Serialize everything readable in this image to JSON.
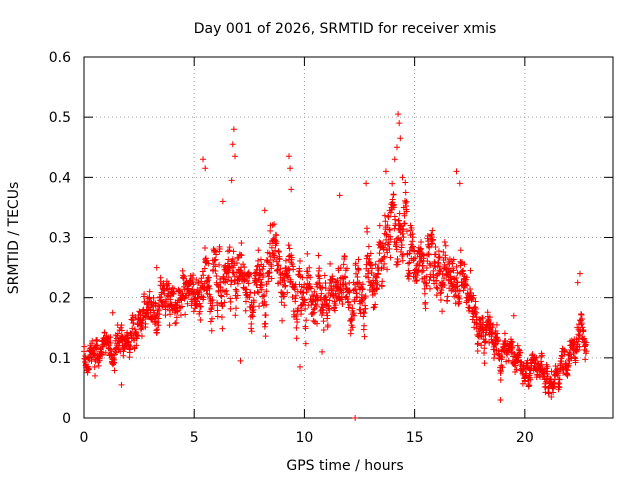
{
  "chart_data": {
    "type": "scatter",
    "title": "Day 001 of 2026, SRMTID for receiver xmis",
    "xlabel": "GPS time / hours",
    "ylabel": "SRMTID / TECUs",
    "xlim": [
      0,
      24
    ],
    "ylim": [
      0,
      0.6
    ],
    "xticks": [
      0,
      5,
      10,
      15,
      20
    ],
    "xtick_labels": [
      "0",
      "5",
      "10",
      "15",
      "20"
    ],
    "yticks": [
      0,
      0.1,
      0.2,
      0.3,
      0.4,
      0.5,
      0.6
    ],
    "ytick_labels": [
      "0",
      "0.1",
      "0.2",
      "0.3",
      "0.4",
      "0.5",
      "0.6"
    ],
    "grid": true,
    "marker": "+",
    "series": [
      {
        "name": "SRMTID",
        "color": "#ff0000",
        "envelope": {
          "x": [
            0,
            0.5,
            1,
            1.5,
            2,
            2.5,
            3,
            3.5,
            4,
            4.5,
            5,
            5.5,
            6,
            6.5,
            7,
            7.5,
            8,
            8.5,
            9,
            9.5,
            10,
            10.5,
            11,
            11.5,
            12,
            12.5,
            13,
            13.5,
            14,
            14.5,
            15,
            15.5,
            16,
            16.5,
            17,
            17.5,
            18,
            18.5,
            19,
            19.5,
            20,
            20.5,
            21,
            21.5,
            22,
            22.5,
            22.8
          ],
          "y": [
            0.11,
            0.11,
            0.115,
            0.13,
            0.14,
            0.16,
            0.175,
            0.18,
            0.19,
            0.2,
            0.22,
            0.26,
            0.25,
            0.24,
            0.23,
            0.2,
            0.22,
            0.25,
            0.26,
            0.24,
            0.21,
            0.21,
            0.22,
            0.2,
            0.19,
            0.2,
            0.22,
            0.27,
            0.33,
            0.32,
            0.28,
            0.26,
            0.25,
            0.27,
            0.24,
            0.19,
            0.16,
            0.14,
            0.11,
            0.1,
            0.075,
            0.07,
            0.065,
            0.07,
            0.1,
            0.14,
            0.1
          ],
          "spread": [
            0.02,
            0.03,
            0.03,
            0.03,
            0.03,
            0.035,
            0.04,
            0.04,
            0.045,
            0.05,
            0.05,
            0.07,
            0.065,
            0.07,
            0.065,
            0.06,
            0.06,
            0.06,
            0.065,
            0.06,
            0.065,
            0.06,
            0.06,
            0.055,
            0.055,
            0.06,
            0.065,
            0.07,
            0.07,
            0.065,
            0.06,
            0.065,
            0.065,
            0.065,
            0.06,
            0.05,
            0.045,
            0.04,
            0.035,
            0.035,
            0.03,
            0.03,
            0.03,
            0.03,
            0.035,
            0.04,
            0.03
          ]
        },
        "peaks": [
          {
            "x": 5.4,
            "y": 0.43
          },
          {
            "x": 5.5,
            "y": 0.415
          },
          {
            "x": 6.3,
            "y": 0.36
          },
          {
            "x": 6.8,
            "y": 0.48
          },
          {
            "x": 6.75,
            "y": 0.455
          },
          {
            "x": 6.85,
            "y": 0.435
          },
          {
            "x": 6.7,
            "y": 0.395
          },
          {
            "x": 8.2,
            "y": 0.345
          },
          {
            "x": 9.3,
            "y": 0.435
          },
          {
            "x": 9.35,
            "y": 0.415
          },
          {
            "x": 9.4,
            "y": 0.38
          },
          {
            "x": 11.6,
            "y": 0.37
          },
          {
            "x": 12.8,
            "y": 0.39
          },
          {
            "x": 13.7,
            "y": 0.41
          },
          {
            "x": 14.1,
            "y": 0.43
          },
          {
            "x": 14.25,
            "y": 0.505
          },
          {
            "x": 14.3,
            "y": 0.49
          },
          {
            "x": 14.35,
            "y": 0.465
          },
          {
            "x": 14.2,
            "y": 0.45
          },
          {
            "x": 14.45,
            "y": 0.4
          },
          {
            "x": 16.9,
            "y": 0.41
          },
          {
            "x": 17.05,
            "y": 0.39
          },
          {
            "x": 19.5,
            "y": 0.17
          },
          {
            "x": 22.5,
            "y": 0.24
          },
          {
            "x": 22.4,
            "y": 0.225
          },
          {
            "x": 1.3,
            "y": 0.175
          },
          {
            "x": 3.3,
            "y": 0.25
          },
          {
            "x": 7.1,
            "y": 0.095
          },
          {
            "x": 9.8,
            "y": 0.085
          },
          {
            "x": 10.8,
            "y": 0.11
          },
          {
            "x": 1.7,
            "y": 0.055
          },
          {
            "x": 18.9,
            "y": 0.03
          },
          {
            "x": 21.2,
            "y": 0.035
          },
          {
            "x": 0.5,
            "y": 0.07
          },
          {
            "x": 12.3,
            "y": 0.0
          }
        ]
      }
    ]
  }
}
